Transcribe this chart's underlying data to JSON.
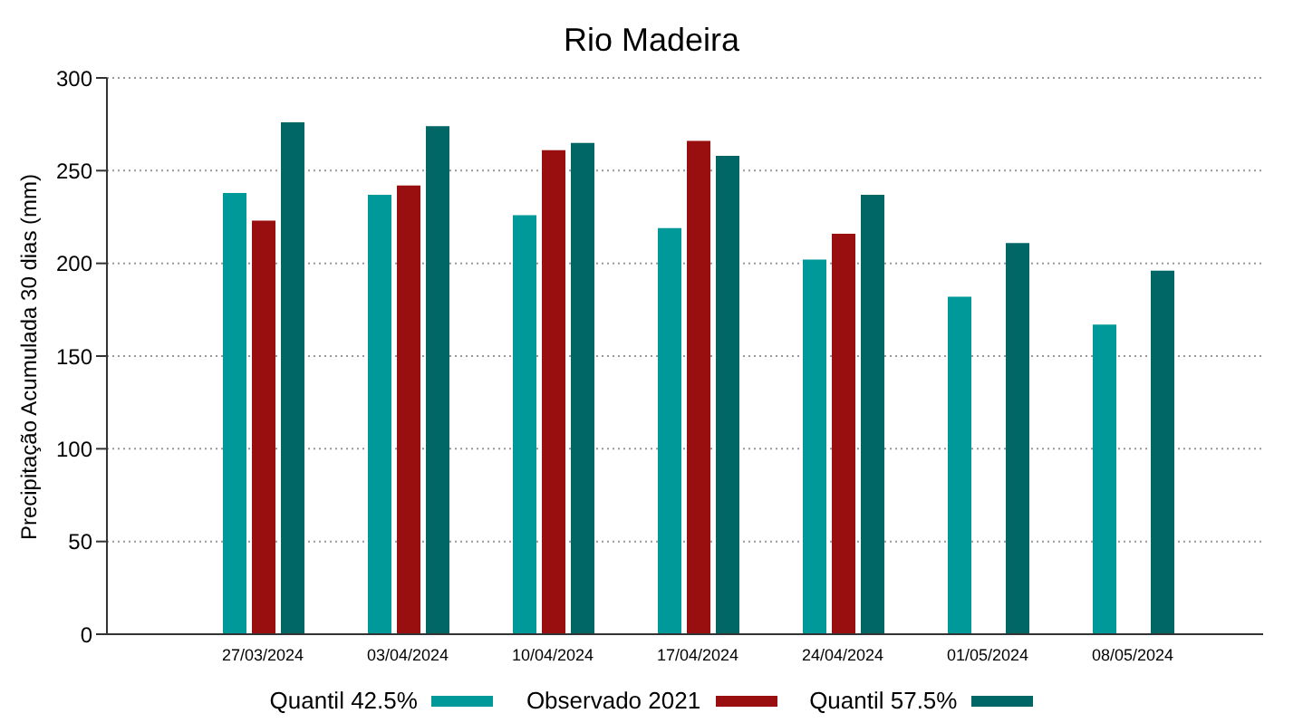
{
  "chart_data": {
    "type": "bar",
    "title": "Rio Madeira",
    "ylabel": "Precipitação Acumulada 30 dias (mm)",
    "categories": [
      "27/03/2024",
      "03/04/2024",
      "10/04/2024",
      "17/04/2024",
      "24/04/2024",
      "01/05/2024",
      "08/05/2024"
    ],
    "series": [
      {
        "name": "Quantil 42.5%",
        "color": "#009999",
        "values": [
          238,
          237,
          226,
          219,
          202,
          182,
          167
        ]
      },
      {
        "name": "Observado 2021",
        "color": "#990e0e",
        "values": [
          223,
          242,
          261,
          266,
          216,
          null,
          null
        ]
      },
      {
        "name": "Quantil 57.5%",
        "color": "#006666",
        "values": [
          276,
          274,
          265,
          258,
          237,
          211,
          196
        ]
      }
    ],
    "ylim": [
      0,
      300
    ],
    "yticks": [
      0,
      50,
      100,
      150,
      200,
      250,
      300
    ],
    "grid": "y",
    "legend": "bottom"
  }
}
